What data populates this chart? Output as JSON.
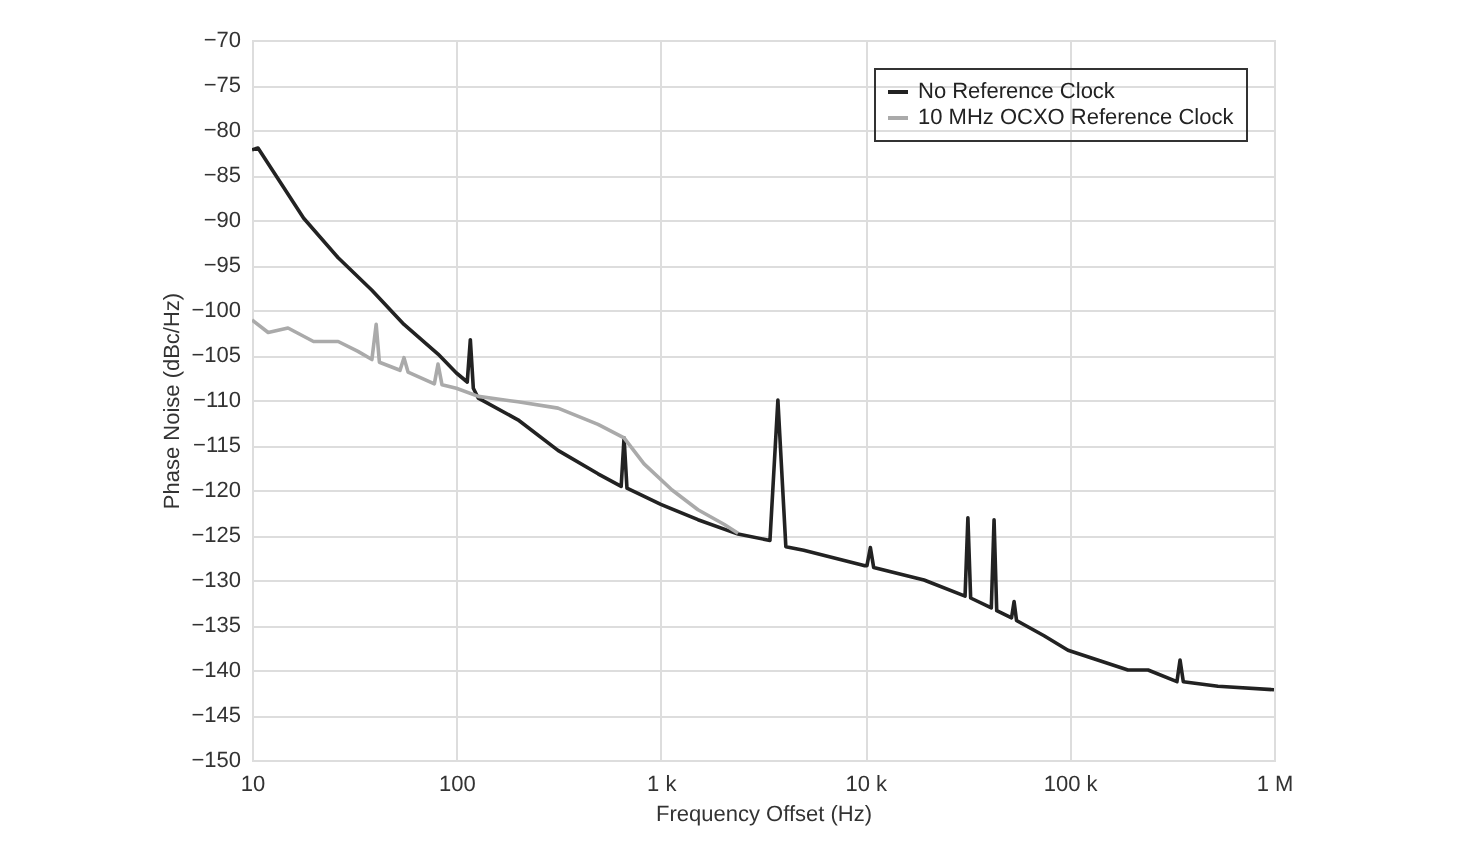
{
  "chart_data": {
    "type": "line",
    "xlabel": "Frequency Offset (Hz)",
    "ylabel": "Phase Noise (dBc/Hz)",
    "log": "x",
    "grid": true,
    "legend": "top right",
    "line_style": "solid",
    "marker": "none",
    "xlim": [
      10,
      1000000
    ],
    "xticks": [
      10,
      100,
      {
        "value": 1000,
        "label": "1 k"
      },
      {
        "value": 10000,
        "label": "10 k"
      },
      {
        "value": 100000,
        "label": "100 k"
      },
      {
        "value": 1000000,
        "label": "1 M"
      }
    ],
    "ylim": [
      -150,
      -70
    ],
    "yticks": [
      {
        "value": -150,
        "label": "−150"
      },
      {
        "value": -145,
        "label": "−145"
      },
      {
        "value": -140,
        "label": "−140"
      },
      {
        "value": -135,
        "label": "−135"
      },
      {
        "value": -130,
        "label": "−130"
      },
      {
        "value": -125,
        "label": "−125"
      },
      {
        "value": -120,
        "label": "−120"
      },
      {
        "value": -115,
        "label": "−115"
      },
      {
        "value": -110,
        "label": "−110"
      },
      {
        "value": -105,
        "label": "−105"
      },
      {
        "value": -100,
        "label": "−100"
      },
      {
        "value": -95,
        "label": "−95"
      },
      {
        "value": -90,
        "label": "−90"
      },
      {
        "value": -85,
        "label": "−85"
      },
      {
        "value": -80,
        "label": "−80"
      },
      {
        "value": -75,
        "label": "−75"
      },
      {
        "value": -70,
        "label": "−70"
      }
    ],
    "series": [
      {
        "name": "No Reference Clock",
        "color": "#222222",
        "x": [
          10,
          10.7,
          17.9,
          26.4,
          38.6,
          55.4,
          81.3,
          100,
          113,
          117,
          121,
          128,
          200,
          314,
          493,
          640,
          661,
          683,
          1000,
          1520,
          2387,
          3420,
          3740,
          4090,
          5000,
          9860,
          10200,
          10600,
          11000,
          19400,
          30800,
          31800,
          32800,
          41400,
          42700,
          44000,
          52000,
          53500,
          55000,
          75000,
          98200,
          193000,
          242000,
          335000,
          347000,
          360000,
          532000,
          1000000
        ],
        "values": [
          -82.2,
          -82,
          -89.8,
          -94.2,
          -97.8,
          -101.6,
          -104.9,
          -107,
          -108,
          -103.3,
          -108.7,
          -109.8,
          -112.2,
          -115.6,
          -118.2,
          -119.6,
          -114.2,
          -119.8,
          -121.6,
          -123.3,
          -124.9,
          -125.6,
          -110,
          -126.3,
          -126.7,
          -128.4,
          -128.4,
          -126.4,
          -128.6,
          -130,
          -131.8,
          -123.1,
          -132,
          -133.1,
          -123.3,
          -133.4,
          -134.2,
          -132.4,
          -134.5,
          -136.2,
          -137.8,
          -140,
          -140,
          -141.3,
          -138.9,
          -141.3,
          -141.8,
          -142.2
        ]
      },
      {
        "name": "10 MHz OCXO Reference Clock",
        "color": "#aaaaaa",
        "x": [
          10,
          12,
          15,
          20,
          26.4,
          33,
          38.6,
          40.5,
          42,
          53,
          55.4,
          58,
          78,
          81.3,
          85,
          100,
          128,
          200,
          314,
          493,
          661,
          828,
          1135,
          1520,
          2037,
          2387
        ],
        "values": [
          -101.1,
          -102.5,
          -102,
          -103.5,
          -103.5,
          -104.6,
          -105.5,
          -101.6,
          -105.8,
          -106.7,
          -105.3,
          -106.9,
          -108.2,
          -106,
          -108.3,
          -108.7,
          -109.6,
          -110.2,
          -110.9,
          -112.7,
          -114.2,
          -117.1,
          -120,
          -122.2,
          -123.8,
          -124.8
        ]
      }
    ]
  }
}
